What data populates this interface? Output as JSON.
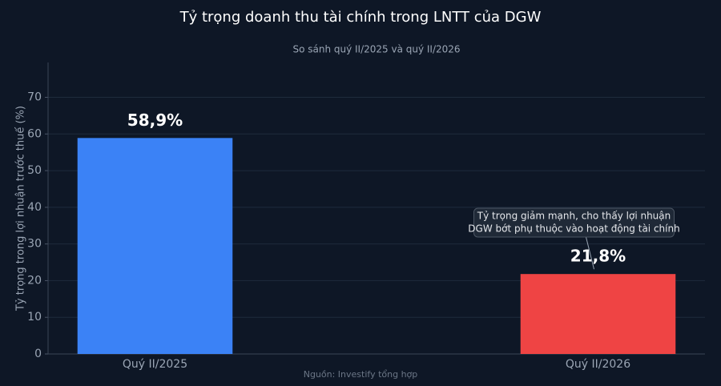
{
  "chart_data": {
    "type": "bar",
    "title": "Tỷ trọng doanh thu tài chính trong LNTT của DGW",
    "subtitle": "So sánh quý II/2025 và quý II/2026",
    "y_label": "Tỷ trọng trong lợi nhuận trước thuế (%)",
    "categories": [
      "Quý II/2025",
      "Quý II/2026"
    ],
    "values": [
      58.9,
      21.8
    ],
    "value_labels": [
      "58,9%",
      "21,8%"
    ],
    "colors": [
      "#3b82f6",
      "#ef4444"
    ],
    "ylim": [
      0,
      79.5
    ],
    "yticks": [
      0,
      10,
      20,
      30,
      40,
      50,
      60,
      70
    ],
    "grid": true,
    "annotation": {
      "lines": [
        "Tỷ trọng giảm mạnh, cho thấy lợi nhuận",
        "DGW bớt phụ thuộc vào hoạt động tài chính"
      ],
      "target": 1
    },
    "source": "Nguồn: Investify tổng hợp"
  }
}
